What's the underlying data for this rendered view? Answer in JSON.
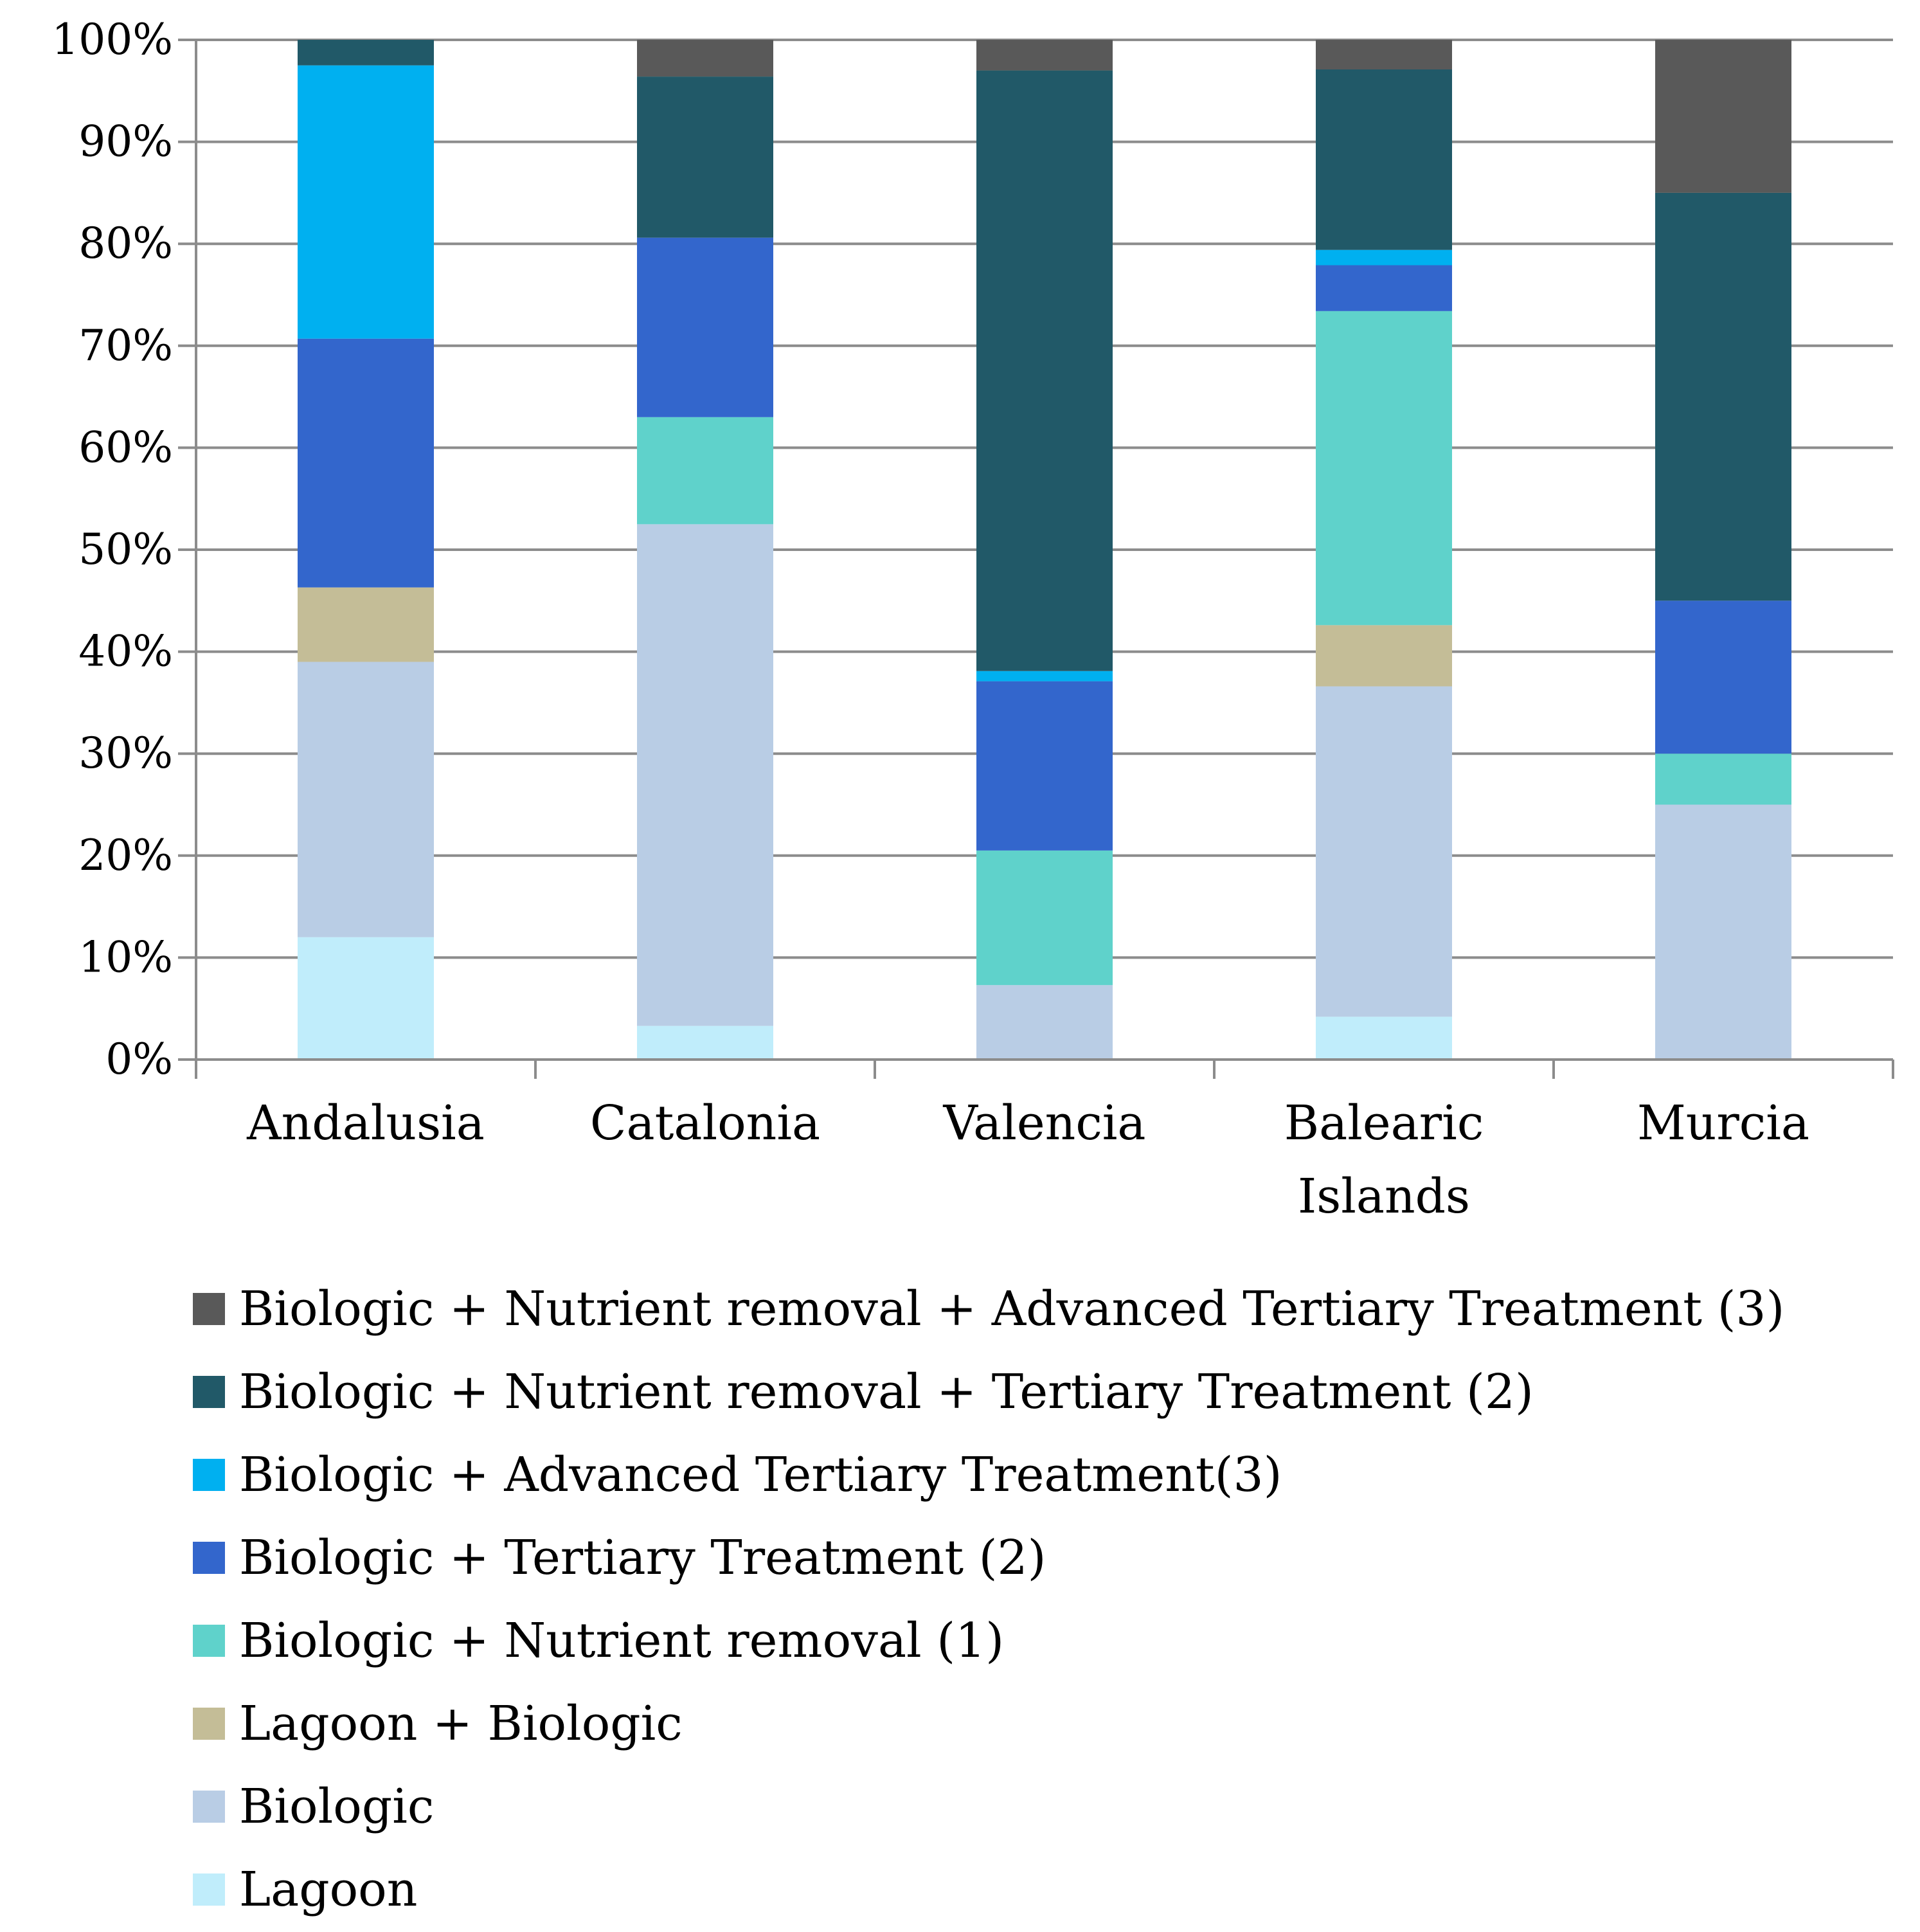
{
  "chart_data": {
    "type": "bar",
    "stacked": true,
    "percent": true,
    "categories": [
      "Andalusia",
      "Catalonia",
      "Valencia",
      "Balearic Islands",
      "Murcia"
    ],
    "ylim": [
      0,
      100
    ],
    "yticks": [
      "0%",
      "10%",
      "20%",
      "30%",
      "40%",
      "50%",
      "60%",
      "70%",
      "80%",
      "90%",
      "100%"
    ],
    "grid": true,
    "legend_position": "bottom",
    "series": [
      {
        "name": "Lagoon",
        "color": "#c0edfb",
        "values": [
          12,
          3.3,
          0,
          4.2,
          0
        ]
      },
      {
        "name": "Biologic",
        "color": "#b9cde5",
        "values": [
          27,
          49.2,
          7.3,
          32.4,
          25
        ]
      },
      {
        "name": "Lagoon + Biologic",
        "color": "#c4bd97",
        "values": [
          7.3,
          0,
          0,
          6,
          0
        ]
      },
      {
        "name": "Biologic + Nutrient removal  (1)",
        "color": "#5fd2cb",
        "values": [
          0,
          10.5,
          13.2,
          30.8,
          5
        ]
      },
      {
        "name": "Biologic + Tertiary Treatment  (2)",
        "color": "#3366cc",
        "values": [
          24.4,
          17.6,
          16.6,
          4.5,
          15
        ]
      },
      {
        "name": "Biologic + Advanced Tertiary Treatment(3)",
        "color": "#00b0f0",
        "values": [
          26.8,
          0,
          1,
          1.5,
          0
        ]
      },
      {
        "name": "Biologic + Nutrient removal + Tertiary Treatment (2)",
        "color": "#215968",
        "values": [
          2.5,
          15.8,
          58.9,
          17.7,
          40
        ]
      },
      {
        "name": "Biologic + Nutrient removal + Advanced Tertiary Treatment  (3)",
        "color": "#595959",
        "values": [
          0,
          3.6,
          3,
          2.9,
          15
        ]
      }
    ]
  }
}
